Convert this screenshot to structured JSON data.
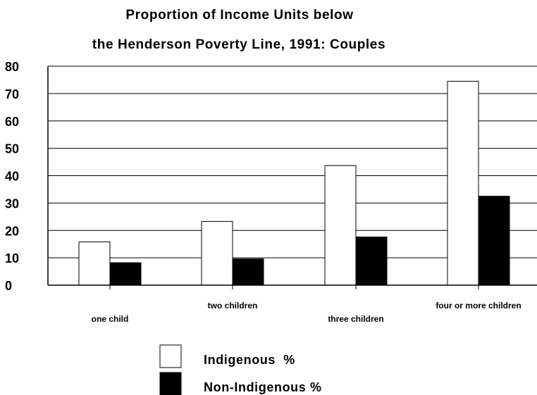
{
  "chart_data": {
    "type": "bar",
    "title_lines": [
      "Proportion of Income Units below",
      "the Henderson Poverty Line, 1991: Couples"
    ],
    "categories": [
      "one child",
      "two children",
      "three children",
      "four or more children"
    ],
    "series": [
      {
        "name": "Indigenous  %",
        "color": "#ffffff",
        "values": [
          15.8,
          23.3,
          43.7,
          74.5
        ]
      },
      {
        "name": "Non-Indigenous %",
        "color": "#000000",
        "values": [
          8.2,
          9.6,
          17.6,
          32.5
        ]
      }
    ],
    "ylim": [
      0,
      80
    ],
    "yticks": [
      "0",
      "10",
      "20",
      "30",
      "40",
      "50",
      "60",
      "70",
      "80"
    ],
    "grid": true,
    "legend_position": "bottom-center"
  }
}
